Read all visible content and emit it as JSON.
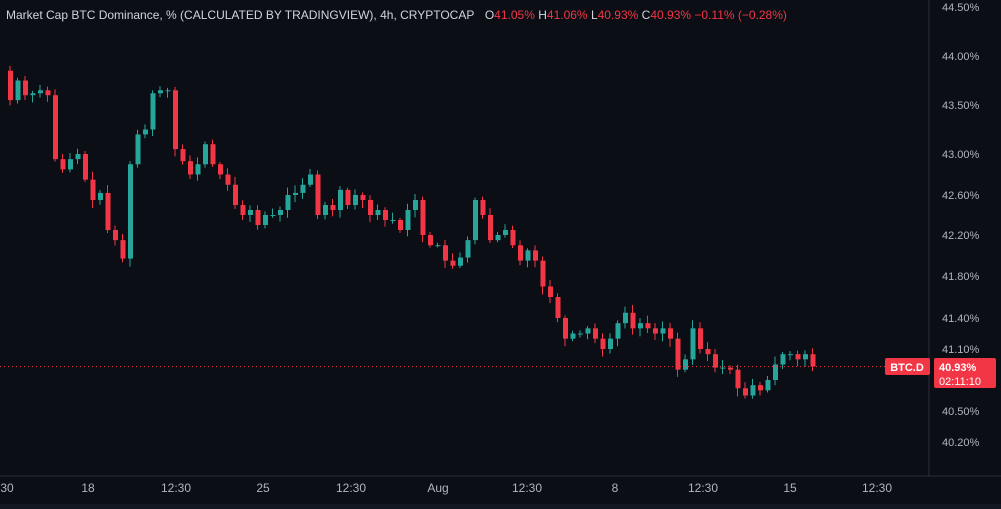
{
  "legend": {
    "title": "Market Cap BTC Dominance, % (CALCULATED BY TRADINGVIEW), 4h, CRYPTOCAP",
    "o_label": "O",
    "o_value": "41.05%",
    "h_label": "H",
    "h_value": "41.06%",
    "l_label": "L",
    "l_value": "40.93%",
    "c_label": "C",
    "c_value": "40.93%",
    "change": "−0.11% (−0.28%)"
  },
  "price_tag": {
    "symbol": "BTC.D",
    "price": "40.93%",
    "countdown": "02:11:10"
  },
  "colors": {
    "up": "#26a69a",
    "down": "#f23645",
    "background": "#0c0e15",
    "text": "#d1d4dc",
    "axis_text": "#b2b5be"
  },
  "chart_data": {
    "type": "candlestick",
    "title": "Market Cap BTC Dominance, % (CALCULATED BY TRADINGVIEW)",
    "interval": "4h",
    "ylim": [
      40.0,
      44.55
    ],
    "y_ticks": [
      "44.50%",
      "44.00%",
      "43.50%",
      "43.00%",
      "42.60%",
      "42.20%",
      "41.80%",
      "41.40%",
      "41.10%",
      "40.50%",
      "40.20%"
    ],
    "x_ticks": [
      "30",
      "18",
      "12:30",
      "25",
      "12:30",
      "Aug",
      "12:30",
      "8",
      "12:30",
      "15",
      "12:30"
    ],
    "last_price": 40.93,
    "grid": false,
    "path": [
      43.85,
      43.55,
      43.75,
      43.6,
      43.62,
      43.65,
      43.6,
      42.95,
      42.85,
      42.95,
      43.0,
      42.75,
      42.55,
      42.62,
      42.25,
      42.15,
      41.97,
      42.9,
      43.2,
      43.25,
      43.62,
      43.65,
      43.65,
      43.05,
      42.93,
      42.8,
      42.9,
      43.1,
      42.9,
      42.8,
      42.7,
      42.5,
      42.4,
      42.45,
      42.3,
      42.4,
      42.4,
      42.45,
      42.6,
      42.62,
      42.7,
      42.8,
      42.4,
      42.5,
      42.45,
      42.65,
      42.5,
      42.6,
      42.55,
      42.4,
      42.45,
      42.35,
      42.35,
      42.25,
      42.45,
      42.55,
      42.2,
      42.1,
      42.1,
      41.95,
      41.9,
      41.98,
      42.15,
      42.55,
      42.4,
      42.15,
      42.2,
      42.25,
      42.1,
      41.95,
      42.05,
      41.95,
      41.7,
      41.6,
      41.4,
      41.2,
      41.25,
      41.25,
      41.3,
      41.2,
      41.1,
      41.2,
      41.35,
      41.45,
      41.3,
      41.35,
      41.3,
      41.25,
      41.3,
      41.2,
      40.9,
      41.0,
      41.3,
      41.1,
      41.05,
      40.92,
      40.92,
      40.9,
      40.72,
      40.65,
      40.75,
      40.7,
      40.8,
      40.95,
      41.05,
      41.05,
      41.0,
      41.05,
      40.93
    ]
  },
  "time_axis": {
    "labels": [
      "30",
      "18",
      "12:30",
      "25",
      "12:30",
      "Aug",
      "12:30",
      "8",
      "12:30",
      "15",
      "12:30"
    ]
  }
}
